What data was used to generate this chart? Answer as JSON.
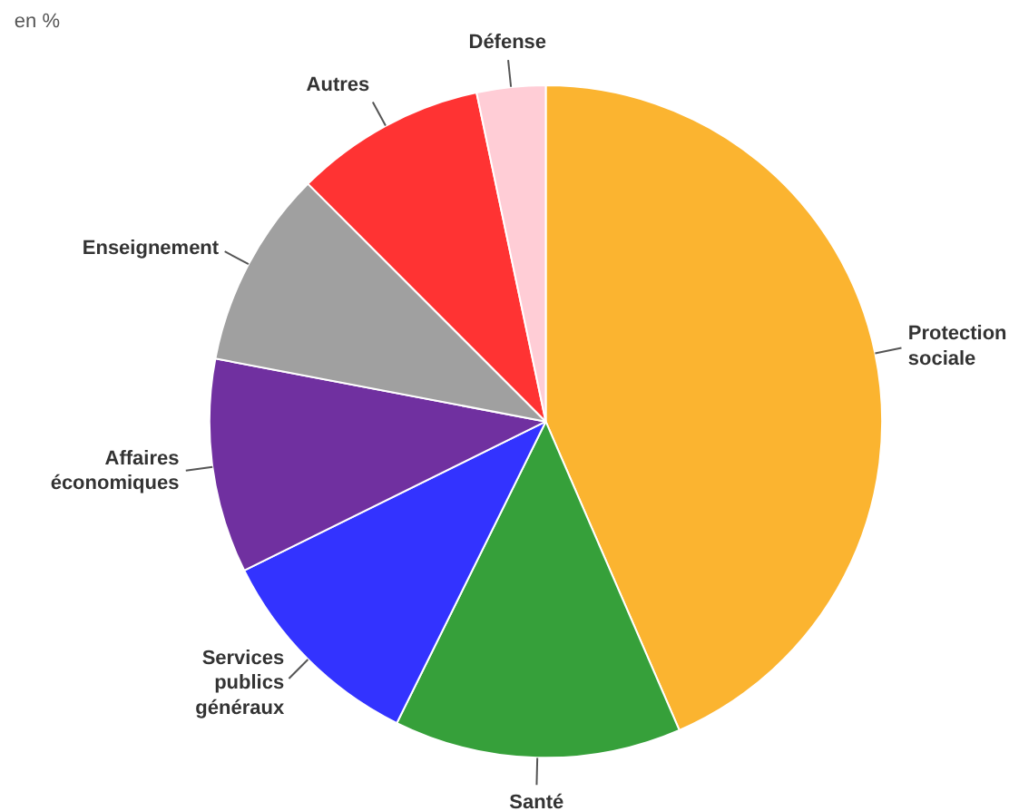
{
  "chart_data": {
    "type": "pie",
    "categories": [
      "Protection sociale",
      "Santé",
      "Services publics généraux",
      "Affaires économiques",
      "Enseignement",
      "Autres",
      "Défense"
    ],
    "values": [
      43.5,
      13.8,
      10.4,
      10.3,
      9.5,
      9.2,
      3.3
    ],
    "colors": [
      "#fbb430",
      "#36a03a",
      "#3333ff",
      "#7030a0",
      "#a0a0a0",
      "#ff3333",
      "#ffcdd6"
    ],
    "annotations": [
      "en %"
    ]
  }
}
